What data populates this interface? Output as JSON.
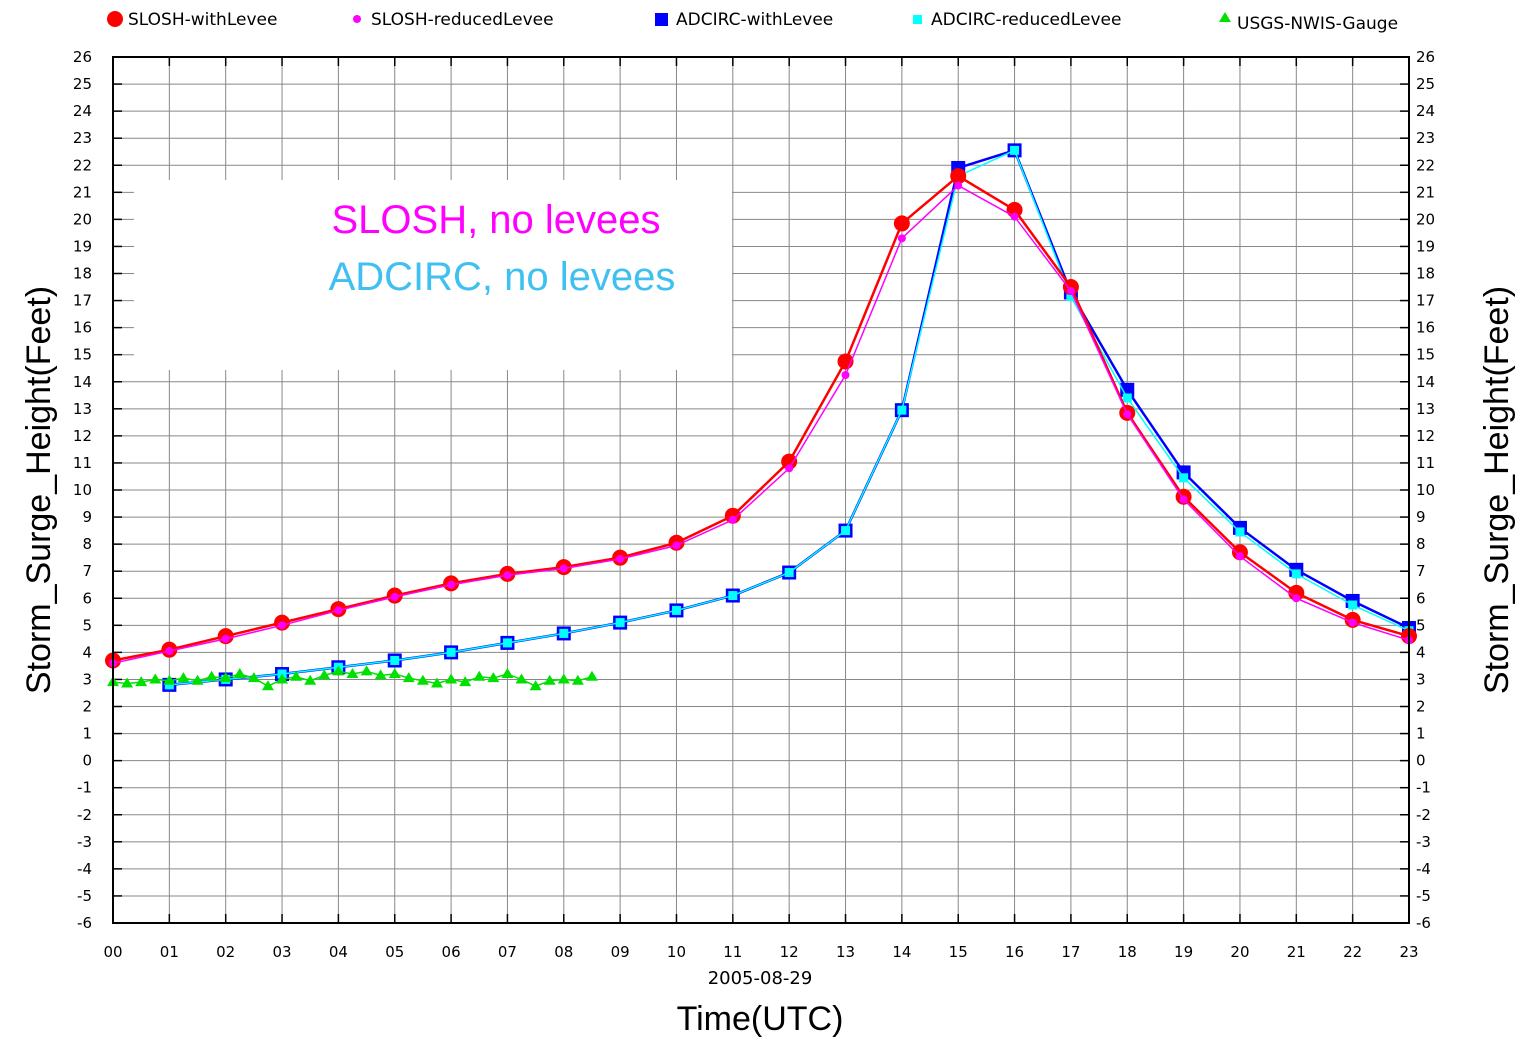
{
  "chart_data": {
    "type": "line",
    "title": "",
    "xlabel": "Time(UTC)",
    "x_date": "2005-08-29",
    "ylabel": "Storm_Surge_Height(Feet)",
    "ylabel_right": "Storm_Surge_Height(Feet)",
    "xlim": [
      0,
      23
    ],
    "ylim": [
      -6,
      26
    ],
    "grid": true,
    "legend_position": "top",
    "x_tick_labels": [
      "00",
      "01",
      "02",
      "03",
      "04",
      "05",
      "06",
      "07",
      "08",
      "09",
      "10",
      "11",
      "12",
      "13",
      "14",
      "15",
      "16",
      "17",
      "18",
      "19",
      "20",
      "21",
      "22",
      "23"
    ],
    "y_ticks": [
      -6,
      -5,
      -4,
      -3,
      -2,
      -1,
      0,
      1,
      2,
      3,
      4,
      5,
      6,
      7,
      8,
      9,
      10,
      11,
      12,
      13,
      14,
      15,
      16,
      17,
      18,
      19,
      20,
      21,
      22,
      23,
      24,
      25,
      26
    ],
    "series": [
      {
        "name": "SLOSH-withLevee",
        "color": "#ff0000",
        "marker": "circle-large",
        "x": [
          0,
          1,
          2,
          3,
          4,
          5,
          6,
          7,
          8,
          9,
          10,
          11,
          12,
          13,
          14,
          15,
          16,
          17,
          18,
          19,
          20,
          21,
          22,
          23
        ],
        "y": [
          3.7,
          4.1,
          4.6,
          5.1,
          5.6,
          6.1,
          6.55,
          6.9,
          7.15,
          7.5,
          8.05,
          9.05,
          11.05,
          14.75,
          19.85,
          21.6,
          20.35,
          17.5,
          12.85,
          9.75,
          7.7,
          6.2,
          5.2,
          4.6
        ]
      },
      {
        "name": "SLOSH-reducedLevee",
        "color": "#ff00ff",
        "marker": "circle-small",
        "x": [
          0,
          1,
          2,
          3,
          4,
          5,
          6,
          7,
          8,
          9,
          10,
          11,
          12,
          13,
          14,
          15,
          16,
          17,
          18,
          19,
          20,
          21,
          22,
          23
        ],
        "y": [
          3.6,
          4.05,
          4.5,
          5.0,
          5.55,
          6.05,
          6.5,
          6.85,
          7.1,
          7.45,
          7.95,
          8.9,
          10.8,
          14.25,
          19.3,
          21.25,
          20.1,
          17.35,
          12.8,
          9.65,
          7.55,
          6.0,
          5.1,
          4.45
        ]
      },
      {
        "name": "ADCIRC-withLevee",
        "color": "#0000ff",
        "marker": "square-large",
        "x": [
          1,
          2,
          3,
          4,
          5,
          6,
          7,
          8,
          9,
          10,
          11,
          12,
          13,
          14,
          15,
          16,
          17,
          18,
          19,
          20,
          21,
          22,
          23
        ],
        "y": [
          2.8,
          3.0,
          3.2,
          3.45,
          3.7,
          4.0,
          4.35,
          4.7,
          5.1,
          5.55,
          6.1,
          6.95,
          8.5,
          12.95,
          21.9,
          22.55,
          17.3,
          13.7,
          10.65,
          8.6,
          7.05,
          5.9,
          4.9
        ]
      },
      {
        "name": "ADCIRC-reducedLevee",
        "color": "#00ffff",
        "marker": "square-small",
        "x": [
          1,
          2,
          3,
          4,
          5,
          6,
          7,
          8,
          9,
          10,
          11,
          12,
          13,
          14,
          15,
          16,
          17,
          18,
          19,
          20,
          21,
          22,
          23
        ],
        "y": [
          2.8,
          3.0,
          3.2,
          3.45,
          3.7,
          4.0,
          4.35,
          4.7,
          5.1,
          5.55,
          6.1,
          6.95,
          8.5,
          12.95,
          21.6,
          22.55,
          17.15,
          13.4,
          10.45,
          8.45,
          6.9,
          5.75,
          4.8
        ]
      },
      {
        "name": "USGS-NWIS-Gauge",
        "color": "#00e000",
        "marker": "triangle",
        "x": [
          0,
          0.25,
          0.5,
          0.75,
          1.0,
          1.25,
          1.5,
          1.75,
          2.0,
          2.25,
          2.5,
          2.75,
          3.0,
          3.25,
          3.5,
          3.75,
          4.0,
          4.25,
          4.5,
          4.75,
          5.0,
          5.25,
          5.5,
          5.75,
          6.0,
          6.25,
          6.5,
          6.75,
          7.0,
          7.25,
          7.5,
          7.75,
          8.0,
          8.25,
          8.5
        ],
        "y": [
          2.9,
          2.85,
          2.9,
          3.0,
          2.95,
          3.05,
          2.95,
          3.1,
          3.05,
          3.2,
          3.05,
          2.75,
          3.0,
          3.1,
          2.95,
          3.15,
          3.3,
          3.2,
          3.3,
          3.15,
          3.2,
          3.05,
          2.95,
          2.85,
          3.0,
          2.9,
          3.1,
          3.05,
          3.2,
          3.0,
          2.75,
          2.95,
          3.0,
          2.95,
          3.1
        ]
      }
    ],
    "annotations": [
      {
        "text": "SLOSH, no levees",
        "color": "#ff00ff"
      },
      {
        "text": "ADCIRC, no levees",
        "color": "#40c0f0"
      }
    ]
  }
}
